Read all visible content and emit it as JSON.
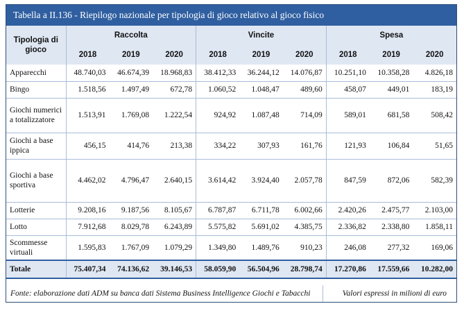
{
  "title": "Tabella a II.136 - Riepilogo nazionale per tipologia di gioco relativo al gioco fisico",
  "header": {
    "category": "Tipologia di gioco",
    "groups": [
      "Raccolta",
      "Vincite",
      "Spesa"
    ],
    "years": [
      "2018",
      "2019",
      "2020",
      "2018",
      "2019",
      "2020",
      "2018",
      "2019",
      "2020"
    ]
  },
  "rows": [
    {
      "label": "Apparecchi",
      "values": [
        "48.740,03",
        "46.674,39",
        "18.968,83",
        "38.412,33",
        "36.244,12",
        "14.076,87",
        "10.251,10",
        "10.358,28",
        "4.826,18"
      ]
    },
    {
      "label": "Bingo",
      "values": [
        "1.518,56",
        "1.497,49",
        "672,78",
        "1.060,52",
        "1.048,47",
        "489,60",
        "458,07",
        "449,01",
        "183,19"
      ]
    },
    {
      "label": "Giochi numerici a totalizzatore",
      "values": [
        "1.513,91",
        "1.769,08",
        "1.222,54",
        "924,92",
        "1.087,48",
        "714,09",
        "589,01",
        "681,58",
        "508,42"
      ]
    },
    {
      "label": "Giochi a base ippica",
      "values": [
        "456,15",
        "414,76",
        "213,38",
        "334,22",
        "307,93",
        "161,76",
        "121,93",
        "106,84",
        "51,65"
      ]
    },
    {
      "label": "Giochi a base sportiva",
      "values": [
        "4.462,02",
        "4.796,47",
        "2.640,15",
        "3.614,42",
        "3.924,40",
        "2.057,78",
        "847,59",
        "872,06",
        "582,39"
      ]
    },
    {
      "label": "Lotterie",
      "values": [
        "9.208,16",
        "9.187,56",
        "8.105,67",
        "6.787,87",
        "6.711,78",
        "6.002,66",
        "2.420,26",
        "2.475,77",
        "2.103,00"
      ]
    },
    {
      "label": "Lotto",
      "values": [
        "7.912,68",
        "8.029,78",
        "6.243,89",
        "5.575,82",
        "5.691,02",
        "4.385,75",
        "2.336,82",
        "2.338,80",
        "1.858,11"
      ]
    },
    {
      "label": "Scommesse virtuali",
      "values": [
        "1.595,83",
        "1.767,09",
        "1.079,29",
        "1.349,80",
        "1.489,76",
        "910,23",
        "246,08",
        "277,32",
        "169,06"
      ]
    }
  ],
  "total": {
    "label": "Totale",
    "values": [
      "75.407,34",
      "74.136,62",
      "39.146,53",
      "58.059,90",
      "56.504,96",
      "28.798,74",
      "17.270,86",
      "17.559,66",
      "10.282,00"
    ]
  },
  "footer": {
    "source": "Fonte: elaborazione dati ADM su banca dati Sistema Business Intelligence Giochi e Tabacchi",
    "unit": "Valori espressi in milioni di euro"
  }
}
